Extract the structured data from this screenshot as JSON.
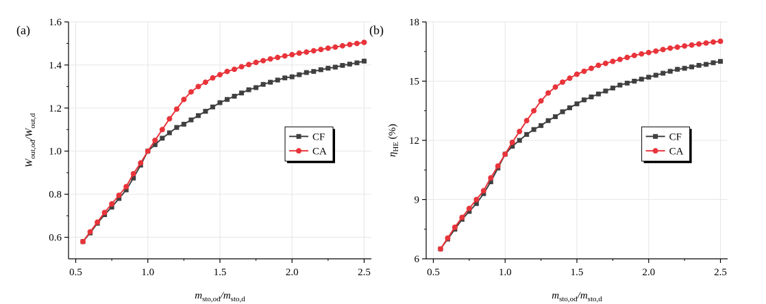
{
  "chart_data": [
    {
      "type": "line",
      "panel_label": "(a)",
      "ylabel": "W out,od / W out,d",
      "ylabel_parts": {
        "main1": "W",
        "sub1": "out,od",
        "mid": "/W",
        "sub2": "out,d",
        "unit": ""
      },
      "xlabel": "m sto,od / m sto,d",
      "xlabel_parts": {
        "main1": "m",
        "sub1": "sto,od",
        "mid": "/m",
        "sub2": "sto,d"
      },
      "xlim": [
        0.45,
        2.55
      ],
      "ylim": [
        0.5,
        1.6
      ],
      "xticks": [
        0.5,
        1.0,
        1.5,
        2.0,
        2.5
      ],
      "xtick_labels": [
        "0.5",
        "1.0",
        "1.5",
        "2.0",
        "2.5"
      ],
      "yticks": [
        0.6,
        0.8,
        1.0,
        1.2,
        1.4,
        1.6
      ],
      "ytick_labels": [
        "0.6",
        "0.8",
        "1.0",
        "1.2",
        "1.4",
        "1.6"
      ],
      "legend_position": "center-right",
      "grid": true,
      "x": [
        0.55,
        0.6,
        0.65,
        0.7,
        0.75,
        0.8,
        0.85,
        0.9,
        0.95,
        1.0,
        1.05,
        1.1,
        1.15,
        1.2,
        1.25,
        1.3,
        1.35,
        1.4,
        1.45,
        1.5,
        1.55,
        1.6,
        1.65,
        1.7,
        1.75,
        1.8,
        1.85,
        1.9,
        1.95,
        2.0,
        2.05,
        2.1,
        2.15,
        2.2,
        2.25,
        2.3,
        2.35,
        2.4,
        2.45,
        2.5
      ],
      "series": [
        {
          "name": "CF",
          "color": "#404040",
          "marker": "square",
          "values": [
            0.58,
            0.62,
            0.665,
            0.705,
            0.74,
            0.78,
            0.82,
            0.875,
            0.935,
            1.0,
            1.03,
            1.06,
            1.085,
            1.11,
            1.125,
            1.145,
            1.165,
            1.185,
            1.205,
            1.225,
            1.24,
            1.255,
            1.27,
            1.285,
            1.295,
            1.31,
            1.32,
            1.33,
            1.34,
            1.345,
            1.355,
            1.365,
            1.37,
            1.378,
            1.385,
            1.39,
            1.398,
            1.404,
            1.41,
            1.418
          ]
        },
        {
          "name": "CA",
          "color": "#e8343a",
          "marker": "circle",
          "values": [
            0.58,
            0.625,
            0.67,
            0.715,
            0.755,
            0.795,
            0.835,
            0.895,
            0.945,
            1.0,
            1.05,
            1.1,
            1.15,
            1.195,
            1.24,
            1.275,
            1.3,
            1.32,
            1.34,
            1.355,
            1.37,
            1.38,
            1.392,
            1.402,
            1.412,
            1.42,
            1.428,
            1.435,
            1.442,
            1.448,
            1.455,
            1.46,
            1.466,
            1.472,
            1.478,
            1.483,
            1.489,
            1.495,
            1.5,
            1.505
          ]
        }
      ]
    },
    {
      "type": "line",
      "panel_label": "(b)",
      "ylabel": "η HE (%)",
      "ylabel_parts": {
        "main1": "η",
        "sub1": "HE",
        "mid": "",
        "sub2": "",
        "unit": " (%)"
      },
      "xlabel": "m sto,od / m sto,d",
      "xlabel_parts": {
        "main1": "m",
        "sub1": "sto,od",
        "mid": "/m",
        "sub2": "sto,d"
      },
      "xlim": [
        0.45,
        2.55
      ],
      "ylim": [
        6,
        18
      ],
      "xticks": [
        0.5,
        1.0,
        1.5,
        2.0,
        2.5
      ],
      "xtick_labels": [
        "0.5",
        "1.0",
        "1.5",
        "2.0",
        "2.5"
      ],
      "yticks": [
        6,
        9,
        12,
        15,
        18
      ],
      "ytick_labels": [
        "6",
        "9",
        "12",
        "15",
        "18"
      ],
      "legend_position": "center-right",
      "grid": true,
      "x": [
        0.55,
        0.6,
        0.65,
        0.7,
        0.75,
        0.8,
        0.85,
        0.9,
        0.95,
        1.0,
        1.05,
        1.1,
        1.15,
        1.2,
        1.25,
        1.3,
        1.35,
        1.4,
        1.45,
        1.5,
        1.55,
        1.6,
        1.65,
        1.7,
        1.75,
        1.8,
        1.85,
        1.9,
        1.95,
        2.0,
        2.05,
        2.1,
        2.15,
        2.2,
        2.25,
        2.3,
        2.35,
        2.4,
        2.45,
        2.5
      ],
      "series": [
        {
          "name": "CF",
          "color": "#404040",
          "marker": "square",
          "values": [
            6.5,
            7.0,
            7.5,
            8.0,
            8.4,
            8.8,
            9.3,
            9.9,
            10.6,
            11.3,
            11.7,
            12.0,
            12.3,
            12.55,
            12.75,
            13.0,
            13.2,
            13.45,
            13.65,
            13.85,
            14.05,
            14.2,
            14.35,
            14.5,
            14.65,
            14.8,
            14.9,
            15.0,
            15.1,
            15.2,
            15.3,
            15.4,
            15.5,
            15.6,
            15.65,
            15.72,
            15.8,
            15.85,
            15.93,
            16.0
          ]
        },
        {
          "name": "CA",
          "color": "#e8343a",
          "marker": "circle",
          "values": [
            6.5,
            7.05,
            7.6,
            8.1,
            8.55,
            9.0,
            9.45,
            10.1,
            10.7,
            11.3,
            11.9,
            12.45,
            13.0,
            13.5,
            14.0,
            14.4,
            14.7,
            14.95,
            15.15,
            15.35,
            15.5,
            15.65,
            15.8,
            15.9,
            16.0,
            16.1,
            16.2,
            16.3,
            16.38,
            16.45,
            16.52,
            16.6,
            16.67,
            16.72,
            16.78,
            16.83,
            16.88,
            16.93,
            16.98,
            17.02
          ]
        }
      ]
    }
  ]
}
